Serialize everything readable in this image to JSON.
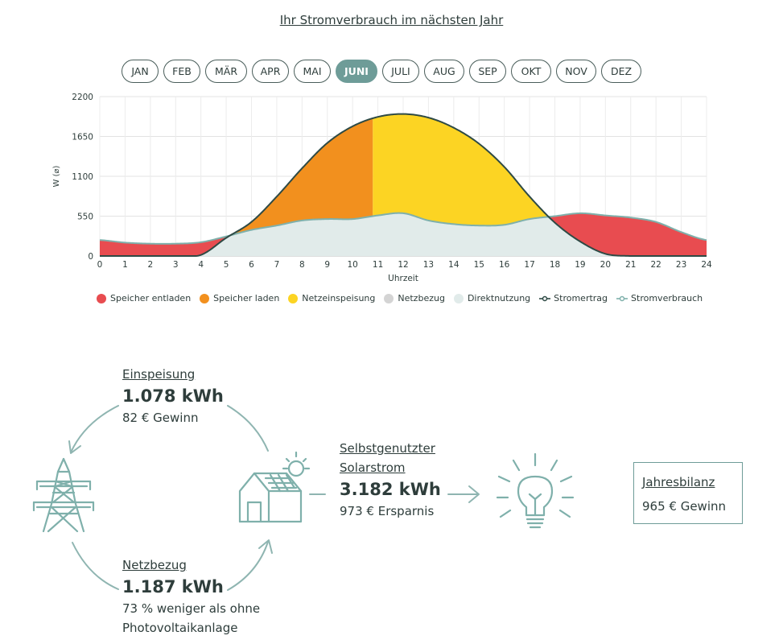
{
  "title": "Ihr Stromverbrauch im nächsten Jahr",
  "months": [
    {
      "label": "JAN",
      "active": false
    },
    {
      "label": "FEB",
      "active": false
    },
    {
      "label": "MÄR",
      "active": false
    },
    {
      "label": "APR",
      "active": false
    },
    {
      "label": "MAI",
      "active": false
    },
    {
      "label": "JUNI",
      "active": true
    },
    {
      "label": "JULI",
      "active": false
    },
    {
      "label": "AUG",
      "active": false
    },
    {
      "label": "SEP",
      "active": false
    },
    {
      "label": "OKT",
      "active": false
    },
    {
      "label": "NOV",
      "active": false
    },
    {
      "label": "DEZ",
      "active": false
    }
  ],
  "chart_data": {
    "type": "area",
    "ylabel": "W (⌀)",
    "xlabel": "Uhrzeit",
    "x": [
      0,
      1,
      2,
      3,
      4,
      5,
      6,
      7,
      8,
      9,
      10,
      11,
      12,
      13,
      14,
      15,
      16,
      17,
      18,
      19,
      20,
      21,
      22,
      23,
      24
    ],
    "ylim": [
      0,
      2200
    ],
    "yticks": [
      0,
      550,
      1100,
      1650,
      2200
    ],
    "storage_charge_until_hour": 10.8,
    "series": [
      {
        "name": "Stromertrag",
        "values": [
          0,
          0,
          0,
          0,
          15,
          250,
          470,
          820,
          1210,
          1560,
          1790,
          1920,
          1960,
          1910,
          1770,
          1550,
          1230,
          820,
          460,
          200,
          30,
          0,
          0,
          0,
          0
        ]
      },
      {
        "name": "Stromverbrauch",
        "values": [
          220,
          185,
          170,
          170,
          190,
          270,
          360,
          420,
          490,
          510,
          510,
          560,
          590,
          490,
          440,
          420,
          430,
          510,
          550,
          590,
          560,
          530,
          470,
          330,
          220
        ]
      }
    ],
    "colors": {
      "Speicher entladen": "#e84c50",
      "Speicher laden": "#f2901e",
      "Netzeinspeisung": "#fcd423",
      "Netzbezug": "#d9d9d9",
      "Direktnutzung": "#e1ebea",
      "Stromertrag": "#2e4a45",
      "Stromverbrauch": "#7fb0ab"
    }
  },
  "legend": [
    {
      "label": "Speicher entladen",
      "kind": "dot",
      "color": "#e84c50"
    },
    {
      "label": "Speicher laden",
      "kind": "dot",
      "color": "#f2901e"
    },
    {
      "label": "Netzeinspeisung",
      "kind": "dot",
      "color": "#fcd423"
    },
    {
      "label": "Netzbezug",
      "kind": "dot",
      "color": "#d4d4d4"
    },
    {
      "label": "Direktnutzung",
      "kind": "dot",
      "color": "#e1ebea"
    },
    {
      "label": "Stromertrag",
      "kind": "line",
      "color": "#2e4a45"
    },
    {
      "label": "Stromverbrauch",
      "kind": "line",
      "color": "#7fb0ab"
    }
  ],
  "einspeisung": {
    "label": "Einspeisung",
    "value": "1.078 kWh",
    "sub": "82 € Gewinn"
  },
  "netzbezug": {
    "label": "Netzbezug",
    "value": "1.187 kWh",
    "sub_line1": "73 % weniger als ohne",
    "sub_line2": "Photovoltaikanlage"
  },
  "solar": {
    "label_line1": "Selbstgenutzter",
    "label_line2": "Solarstrom",
    "value": "3.182 kWh",
    "sub": "973 € Ersparnis"
  },
  "bilanz": {
    "label": "Jahresbilanz",
    "value": "965 € Gewinn"
  }
}
